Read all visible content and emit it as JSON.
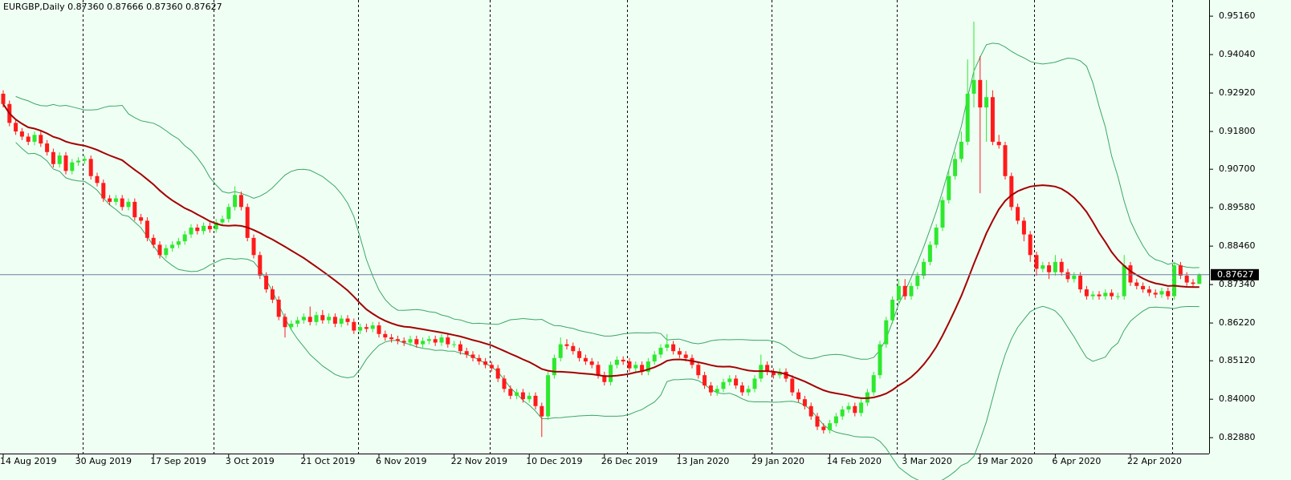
{
  "chart_data": {
    "type": "candlestick",
    "title": "EURGBP,Daily  0.87360 0.87666 0.87360 0.87627",
    "categories": [
      "14 Aug 2019",
      null,
      null,
      null,
      null,
      null,
      null,
      null,
      null,
      null,
      null,
      null,
      "30 Aug 2019",
      null,
      null,
      null,
      null,
      null,
      null,
      null,
      null,
      null,
      null,
      null,
      "17 Sep 2019",
      null,
      null,
      null,
      null,
      null,
      null,
      null,
      null,
      null,
      null,
      null,
      "3 Oct 2019",
      null,
      null,
      null,
      null,
      null,
      null,
      null,
      null,
      null,
      null,
      null,
      "21 Oct 2019",
      null,
      null,
      null,
      null,
      null,
      null,
      null,
      null,
      null,
      null,
      null,
      "6 Nov 2019",
      null,
      null,
      null,
      null,
      null,
      null,
      null,
      null,
      null,
      null,
      null,
      "22 Nov 2019",
      null,
      null,
      null,
      null,
      null,
      null,
      null,
      null,
      null,
      null,
      null,
      "10 Dec 2019",
      null,
      null,
      null,
      null,
      null,
      null,
      null,
      null,
      null,
      null,
      null,
      "26 Dec 2019",
      null,
      null,
      null,
      null,
      null,
      null,
      null,
      null,
      null,
      null,
      null,
      "13 Jan 2020",
      null,
      null,
      null,
      null,
      null,
      null,
      null,
      null,
      null,
      null,
      null,
      "29 Jan 2020",
      null,
      null,
      null,
      null,
      null,
      null,
      null,
      null,
      null,
      null,
      null,
      "14 Feb 2020",
      null,
      null,
      null,
      null,
      null,
      null,
      null,
      null,
      null,
      null,
      null,
      "3 Mar 2020",
      null,
      null,
      null,
      null,
      null,
      null,
      null,
      null,
      null,
      null,
      null,
      "19 Mar 2020",
      null,
      null,
      null,
      null,
      null,
      null,
      null,
      null,
      null,
      null,
      null,
      "6 Apr 2020",
      null,
      null,
      null,
      null,
      null,
      null,
      null,
      null,
      null,
      null,
      null,
      "22 Apr 2020",
      null,
      null,
      null,
      null,
      null,
      null,
      null,
      null,
      null,
      null,
      null
    ],
    "open": [
      0.929,
      0.926,
      0.9205,
      0.918,
      0.9165,
      0.915,
      0.917,
      0.9145,
      0.912,
      0.9085,
      0.911,
      0.9065,
      0.909,
      0.9095,
      0.91,
      0.905,
      0.903,
      0.8985,
      0.8975,
      0.8985,
      0.896,
      0.8975,
      0.893,
      0.892,
      0.887,
      0.885,
      0.882,
      0.884,
      0.885,
      0.886,
      0.888,
      0.89,
      0.889,
      0.8905,
      0.8895,
      0.8915,
      0.8925,
      0.896,
      0.8995,
      0.896,
      0.887,
      0.882,
      0.876,
      0.872,
      0.869,
      0.864,
      0.861,
      0.862,
      0.863,
      0.864,
      0.8625,
      0.8645,
      0.863,
      0.864,
      0.862,
      0.8635,
      0.8625,
      0.86,
      0.861,
      0.8605,
      0.8615,
      0.859,
      0.858,
      0.8575,
      0.857,
      0.8565,
      0.8575,
      0.856,
      0.857,
      0.8575,
      0.8565,
      0.858,
      0.856,
      0.856,
      0.854,
      0.853,
      0.852,
      0.851,
      0.85,
      0.849,
      0.846,
      0.843,
      0.841,
      0.842,
      0.84,
      0.841,
      0.838,
      0.835,
      0.847,
      0.852,
      0.856,
      0.8555,
      0.854,
      0.852,
      0.851,
      0.85,
      0.847,
      0.845,
      0.85,
      0.8515,
      0.851,
      0.849,
      0.85,
      0.848,
      0.851,
      0.853,
      0.855,
      0.856,
      0.854,
      0.853,
      0.852,
      0.85,
      0.847,
      0.844,
      0.842,
      0.843,
      0.845,
      0.846,
      0.844,
      0.842,
      0.843,
      0.846,
      0.85,
      0.848,
      0.847,
      0.848,
      0.846,
      0.842,
      0.84,
      0.838,
      0.835,
      0.832,
      0.831,
      0.833,
      0.835,
      0.837,
      0.838,
      0.836,
      0.839,
      0.842,
      0.847,
      0.856,
      0.863,
      0.869,
      0.873,
      0.87,
      0.873,
      0.876,
      0.88,
      0.885,
      0.89,
      0.898,
      0.905,
      0.91,
      0.915,
      0.929,
      0.933,
      0.925,
      0.928,
      0.915,
      0.914,
      0.905,
      0.896,
      0.892,
      0.888,
      0.882,
      0.878,
      0.879,
      0.877,
      0.88,
      0.877,
      0.875,
      0.876,
      0.872,
      0.87,
      0.8705,
      0.87,
      0.871,
      0.87,
      0.87,
      0.879,
      0.874,
      0.873,
      0.872,
      0.871,
      0.8705,
      0.8715,
      0.87,
      0.879,
      0.876,
      0.874,
      0.8736
    ],
    "high": [
      0.93,
      0.927,
      0.9215,
      0.919,
      0.9175,
      0.918,
      0.918,
      0.9155,
      0.913,
      0.912,
      0.912,
      0.91,
      0.9105,
      0.911,
      0.911,
      0.906,
      0.904,
      0.8995,
      0.8995,
      0.8995,
      0.8985,
      0.8985,
      0.894,
      0.893,
      0.888,
      0.886,
      0.885,
      0.886,
      0.887,
      0.889,
      0.891,
      0.891,
      0.8915,
      0.8915,
      0.8925,
      0.8935,
      0.897,
      0.902,
      0.9005,
      0.897,
      0.888,
      0.883,
      0.877,
      0.873,
      0.87,
      0.865,
      0.863,
      0.864,
      0.865,
      0.867,
      0.8655,
      0.866,
      0.865,
      0.865,
      0.8645,
      0.8645,
      0.8635,
      0.862,
      0.862,
      0.8625,
      0.8625,
      0.86,
      0.859,
      0.8585,
      0.858,
      0.8585,
      0.8585,
      0.858,
      0.8585,
      0.8585,
      0.859,
      0.859,
      0.857,
      0.857,
      0.855,
      0.854,
      0.853,
      0.852,
      0.851,
      0.85,
      0.847,
      0.844,
      0.843,
      0.843,
      0.842,
      0.842,
      0.839,
      0.848,
      0.853,
      0.858,
      0.8575,
      0.8565,
      0.855,
      0.853,
      0.852,
      0.851,
      0.848,
      0.851,
      0.8525,
      0.8525,
      0.852,
      0.851,
      0.851,
      0.852,
      0.854,
      0.856,
      0.859,
      0.857,
      0.855,
      0.854,
      0.853,
      0.851,
      0.848,
      0.845,
      0.844,
      0.846,
      0.847,
      0.847,
      0.845,
      0.844,
      0.847,
      0.853,
      0.851,
      0.849,
      0.849,
      0.849,
      0.847,
      0.843,
      0.841,
      0.839,
      0.836,
      0.833,
      0.834,
      0.836,
      0.838,
      0.839,
      0.839,
      0.84,
      0.843,
      0.848,
      0.857,
      0.864,
      0.87,
      0.875,
      0.875,
      0.874,
      0.877,
      0.881,
      0.886,
      0.891,
      0.899,
      0.907,
      0.912,
      0.918,
      0.939,
      0.95,
      0.94,
      0.933,
      0.93,
      0.917,
      0.915,
      0.906,
      0.897,
      0.893,
      0.889,
      0.883,
      0.88,
      0.88,
      0.882,
      0.881,
      0.878,
      0.877,
      0.877,
      0.873,
      0.8715,
      0.8715,
      0.872,
      0.872,
      0.871,
      0.882,
      0.88,
      0.875,
      0.874,
      0.873,
      0.872,
      0.8725,
      0.8725,
      0.88,
      0.88,
      0.877,
      0.875,
      0.87666
    ],
    "low": [
      0.925,
      0.9195,
      0.917,
      0.9155,
      0.914,
      0.914,
      0.9135,
      0.911,
      0.9075,
      0.9075,
      0.9055,
      0.9055,
      0.908,
      0.9085,
      0.904,
      0.902,
      0.8975,
      0.8965,
      0.8965,
      0.895,
      0.895,
      0.892,
      0.891,
      0.886,
      0.884,
      0.881,
      0.881,
      0.883,
      0.884,
      0.885,
      0.887,
      0.888,
      0.888,
      0.8885,
      0.8885,
      0.8905,
      0.8915,
      0.895,
      0.895,
      0.886,
      0.881,
      0.875,
      0.871,
      0.868,
      0.863,
      0.858,
      0.86,
      0.861,
      0.862,
      0.8615,
      0.8615,
      0.862,
      0.862,
      0.861,
      0.861,
      0.8615,
      0.859,
      0.859,
      0.8595,
      0.8595,
      0.858,
      0.857,
      0.8565,
      0.856,
      0.8555,
      0.8555,
      0.855,
      0.855,
      0.856,
      0.8555,
      0.8555,
      0.855,
      0.855,
      0.853,
      0.852,
      0.851,
      0.85,
      0.849,
      0.848,
      0.845,
      0.842,
      0.84,
      0.84,
      0.839,
      0.839,
      0.837,
      0.829,
      0.834,
      0.846,
      0.851,
      0.8545,
      0.853,
      0.851,
      0.85,
      0.849,
      0.846,
      0.844,
      0.844,
      0.849,
      0.85,
      0.848,
      0.848,
      0.847,
      0.847,
      0.85,
      0.852,
      0.854,
      0.853,
      0.852,
      0.851,
      0.849,
      0.846,
      0.843,
      0.841,
      0.841,
      0.842,
      0.844,
      0.843,
      0.841,
      0.841,
      0.842,
      0.845,
      0.847,
      0.846,
      0.846,
      0.845,
      0.841,
      0.839,
      0.837,
      0.834,
      0.831,
      0.83,
      0.83,
      0.832,
      0.834,
      0.836,
      0.835,
      0.835,
      0.838,
      0.841,
      0.846,
      0.855,
      0.862,
      0.868,
      0.869,
      0.869,
      0.872,
      0.875,
      0.879,
      0.884,
      0.889,
      0.897,
      0.904,
      0.909,
      0.914,
      0.925,
      0.9,
      0.915,
      0.914,
      0.913,
      0.904,
      0.895,
      0.891,
      0.886,
      0.88,
      0.876,
      0.877,
      0.875,
      0.876,
      0.876,
      0.874,
      0.874,
      0.871,
      0.869,
      0.869,
      0.869,
      0.869,
      0.869,
      0.869,
      0.869,
      0.873,
      0.872,
      0.871,
      0.87,
      0.8695,
      0.8695,
      0.869,
      0.869,
      0.875,
      0.873,
      0.8725,
      0.8736
    ],
    "close": [
      0.926,
      0.9205,
      0.918,
      0.9165,
      0.915,
      0.917,
      0.9145,
      0.912,
      0.9085,
      0.911,
      0.9065,
      0.909,
      0.9095,
      0.91,
      0.905,
      0.903,
      0.8985,
      0.8975,
      0.8985,
      0.896,
      0.8975,
      0.893,
      0.892,
      0.887,
      0.885,
      0.882,
      0.884,
      0.885,
      0.886,
      0.888,
      0.89,
      0.889,
      0.8905,
      0.8895,
      0.8915,
      0.8925,
      0.896,
      0.8995,
      0.896,
      0.887,
      0.882,
      0.876,
      0.872,
      0.869,
      0.864,
      0.861,
      0.862,
      0.863,
      0.864,
      0.8625,
      0.8645,
      0.863,
      0.864,
      0.862,
      0.8635,
      0.8625,
      0.86,
      0.861,
      0.8605,
      0.8615,
      0.859,
      0.858,
      0.8575,
      0.857,
      0.8565,
      0.8575,
      0.856,
      0.857,
      0.8575,
      0.8565,
      0.858,
      0.856,
      0.856,
      0.854,
      0.853,
      0.852,
      0.851,
      0.85,
      0.849,
      0.846,
      0.843,
      0.841,
      0.842,
      0.84,
      0.841,
      0.838,
      0.835,
      0.847,
      0.852,
      0.856,
      0.8555,
      0.854,
      0.852,
      0.851,
      0.85,
      0.847,
      0.845,
      0.85,
      0.8515,
      0.851,
      0.849,
      0.85,
      0.848,
      0.851,
      0.853,
      0.855,
      0.856,
      0.854,
      0.853,
      0.852,
      0.85,
      0.847,
      0.844,
      0.842,
      0.843,
      0.845,
      0.846,
      0.844,
      0.842,
      0.843,
      0.846,
      0.85,
      0.848,
      0.847,
      0.848,
      0.846,
      0.842,
      0.84,
      0.838,
      0.835,
      0.832,
      0.831,
      0.833,
      0.835,
      0.837,
      0.838,
      0.836,
      0.839,
      0.842,
      0.847,
      0.856,
      0.863,
      0.869,
      0.873,
      0.87,
      0.873,
      0.876,
      0.88,
      0.885,
      0.89,
      0.898,
      0.905,
      0.91,
      0.915,
      0.929,
      0.933,
      0.925,
      0.928,
      0.915,
      0.914,
      0.905,
      0.896,
      0.892,
      0.888,
      0.882,
      0.878,
      0.879,
      0.877,
      0.88,
      0.877,
      0.875,
      0.876,
      0.872,
      0.87,
      0.8705,
      0.87,
      0.871,
      0.87,
      0.87,
      0.879,
      0.874,
      0.873,
      0.872,
      0.871,
      0.8705,
      0.8715,
      0.87,
      0.879,
      0.876,
      0.874,
      0.8736,
      0.87627
    ],
    "up_color": "#2ee82e",
    "down_color": "#ff1a1a",
    "ma_color": "#a30000",
    "band_color": "#3aa866",
    "last_price": {
      "value": 0.87627,
      "label": "0.87627"
    },
    "ylim": [
      0.8244,
      0.9563
    ],
    "yticks": [
      {
        "value": 0.9516,
        "label": "0.95160"
      },
      {
        "value": 0.9404,
        "label": "0.94040"
      },
      {
        "value": 0.9292,
        "label": "0.92920"
      },
      {
        "value": 0.918,
        "label": "0.91800"
      },
      {
        "value": 0.907,
        "label": "0.90700"
      },
      {
        "value": 0.8958,
        "label": "0.89580"
      },
      {
        "value": 0.8846,
        "label": "0.88460"
      },
      {
        "value": 0.8734,
        "label": "0.87340"
      },
      {
        "value": 0.8622,
        "label": "0.86220"
      },
      {
        "value": 0.8512,
        "label": "0.85120"
      },
      {
        "value": 0.84,
        "label": "0.84000"
      },
      {
        "value": 0.8288,
        "label": "0.82880"
      }
    ]
  }
}
